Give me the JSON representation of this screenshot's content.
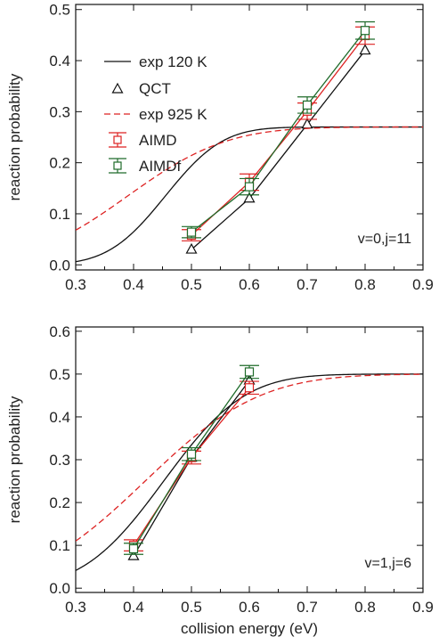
{
  "colors": {
    "black": "#111111",
    "red": "#dd2222",
    "green": "#1f6b2a"
  },
  "chart_data": [
    {
      "type": "line",
      "title": "",
      "xlabel": "",
      "ylabel": "reaction probability",
      "xlim": [
        0.3,
        0.9
      ],
      "ylim": [
        -0.01,
        0.51
      ],
      "xticks": [
        "0.3",
        "0.4",
        "0.5",
        "0.6",
        "0.7",
        "0.8",
        "0.9"
      ],
      "yticks": [
        "0.0",
        "0.1",
        "0.2",
        "0.3",
        "0.4",
        "0.5"
      ],
      "annotation": "v=0,j=11",
      "legend_placement": "top-left",
      "grid": false,
      "series": [
        {
          "name": "exp 120 K",
          "style": "solid-line",
          "color": "#111111",
          "curve": {
            "amplitude": 0.27,
            "threshold": 0.345,
            "width": 0.11
          }
        },
        {
          "name": "QCT",
          "style": "triangle-markers-line",
          "color": "#111111",
          "x": [
            0.5,
            0.6,
            0.7,
            0.8
          ],
          "y": [
            0.03,
            0.13,
            0.275,
            0.42
          ]
        },
        {
          "name": "exp 925 K",
          "style": "dashed-line",
          "color": "#dd2222",
          "curve": {
            "amplitude": 0.27,
            "threshold": 0.2,
            "width": 0.19
          }
        },
        {
          "name": "AIMD",
          "style": "square-errorbar-line",
          "color": "#dd2222",
          "x": [
            0.5,
            0.6,
            0.7,
            0.8
          ],
          "y": [
            0.058,
            0.162,
            0.301,
            0.449
          ],
          "err": [
            0.011,
            0.016,
            0.016,
            0.017
          ]
        },
        {
          "name": "AIMDf",
          "style": "square-errorbar-line",
          "color": "#1f6b2a",
          "x": [
            0.5,
            0.6,
            0.7,
            0.8
          ],
          "y": [
            0.064,
            0.153,
            0.313,
            0.459
          ],
          "err": [
            0.011,
            0.016,
            0.016,
            0.017
          ]
        }
      ]
    },
    {
      "type": "line",
      "title": "",
      "xlabel": "collision energy (eV)",
      "ylabel": "reaction probability",
      "xlim": [
        0.3,
        0.9
      ],
      "ylim": [
        -0.01,
        0.61
      ],
      "xticks": [
        "0.3",
        "0.4",
        "0.5",
        "0.6",
        "0.7",
        "0.8",
        "0.9"
      ],
      "yticks": [
        "0.0",
        "0.1",
        "0.2",
        "0.3",
        "0.4",
        "0.5",
        "0.6"
      ],
      "annotation": "v=1,j=6",
      "grid": false,
      "series": [
        {
          "name": "exp 120 K",
          "style": "solid-line",
          "color": "#111111",
          "curve": {
            "amplitude": 0.5,
            "threshold": 0.297,
            "width": 0.155
          }
        },
        {
          "name": "QCT",
          "style": "triangle-markers-line",
          "color": "#111111",
          "x": [
            0.4,
            0.5,
            0.6
          ],
          "y": [
            0.075,
            0.305,
            0.485
          ]
        },
        {
          "name": "exp 925 K",
          "style": "dashed-line",
          "color": "#dd2222",
          "curve": {
            "amplitude": 0.5,
            "threshold": 0.2,
            "width": 0.22
          }
        },
        {
          "name": "AIMD",
          "style": "square-errorbar-line",
          "color": "#dd2222",
          "x": [
            0.4,
            0.5,
            0.6
          ],
          "y": [
            0.1,
            0.305,
            0.468
          ],
          "err": [
            0.013,
            0.015,
            0.015
          ]
        },
        {
          "name": "AIMDf",
          "style": "square-errorbar-line",
          "color": "#1f6b2a",
          "x": [
            0.4,
            0.5,
            0.6
          ],
          "y": [
            0.092,
            0.313,
            0.505
          ],
          "err": [
            0.013,
            0.015,
            0.015
          ]
        }
      ]
    }
  ]
}
